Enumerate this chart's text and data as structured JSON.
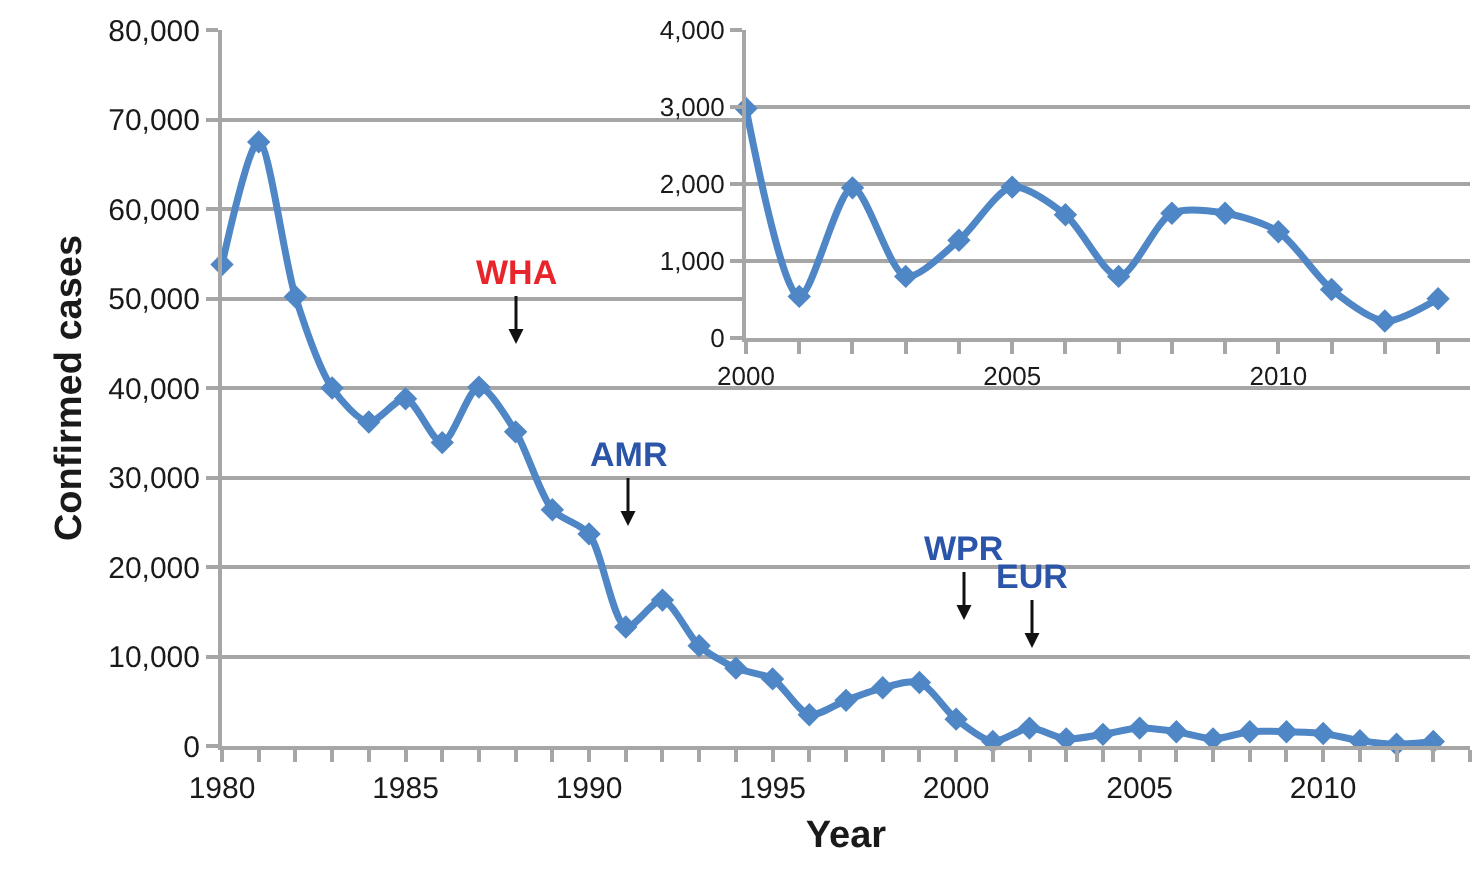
{
  "chart_data": [
    {
      "type": "line",
      "xlabel": "Year",
      "ylabel": "Confirmed cases",
      "marker": "diamond",
      "grid": "y",
      "x": [
        1980,
        1981,
        1982,
        1983,
        1984,
        1985,
        1986,
        1987,
        1988,
        1989,
        1990,
        1991,
        1992,
        1993,
        1994,
        1995,
        1996,
        1997,
        1998,
        1999,
        2000,
        2001,
        2002,
        2003,
        2004,
        2005,
        2006,
        2007,
        2008,
        2009,
        2010,
        2011,
        2012,
        2013
      ],
      "series": [
        {
          "color": "#4f86c6",
          "values": [
            53800,
            67500,
            50200,
            40000,
            36200,
            38800,
            33900,
            40100,
            35100,
            26400,
            23700,
            13300,
            16300,
            11200,
            8700,
            7500,
            3500,
            5100,
            6500,
            7100,
            3000,
            500,
            2000,
            800,
            1300,
            2000,
            1600,
            800,
            1600,
            1600,
            1400,
            600,
            200,
            500
          ]
        }
      ],
      "xlim": [
        1980,
        2014
      ],
      "xticks": [
        1980,
        1985,
        1990,
        1995,
        2000,
        2005,
        2010
      ],
      "ylim": [
        0,
        80000
      ],
      "yticks": [
        0,
        {
          "value": 10000,
          "label": "10,000"
        },
        {
          "value": 20000,
          "label": "20,000"
        },
        {
          "value": 30000,
          "label": "30,000"
        },
        {
          "value": 40000,
          "label": "40,000"
        },
        {
          "value": 50000,
          "label": "50,000"
        },
        {
          "value": 60000,
          "label": "60,000"
        },
        {
          "value": 70000,
          "label": "70,000"
        },
        {
          "value": 80000,
          "label": "80,000"
        }
      ],
      "annotations": [
        "WHA",
        "AMR",
        "WPR",
        "EUR"
      ]
    },
    {
      "type": "line",
      "marker": "diamond",
      "grid": "y",
      "x": [
        2000,
        2001,
        2002,
        2003,
        2004,
        2005,
        2006,
        2007,
        2008,
        2009,
        2010,
        2011,
        2012,
        2013
      ],
      "series": [
        {
          "color": "#4f86c6",
          "values": [
            2980,
            540,
            1950,
            800,
            1270,
            1960,
            1600,
            800,
            1620,
            1620,
            1380,
            630,
            220,
            510
          ]
        }
      ],
      "xlim": [
        2000,
        2013.6
      ],
      "xticks": [
        2000,
        2005,
        2010
      ],
      "ylim": [
        0,
        4000
      ],
      "yticks": [
        0,
        {
          "value": 1000,
          "label": "1,000"
        },
        {
          "value": 2000,
          "label": "2,000"
        },
        {
          "value": 3000,
          "label": "3,000"
        },
        {
          "value": 4000,
          "label": "4,000"
        }
      ]
    }
  ]
}
